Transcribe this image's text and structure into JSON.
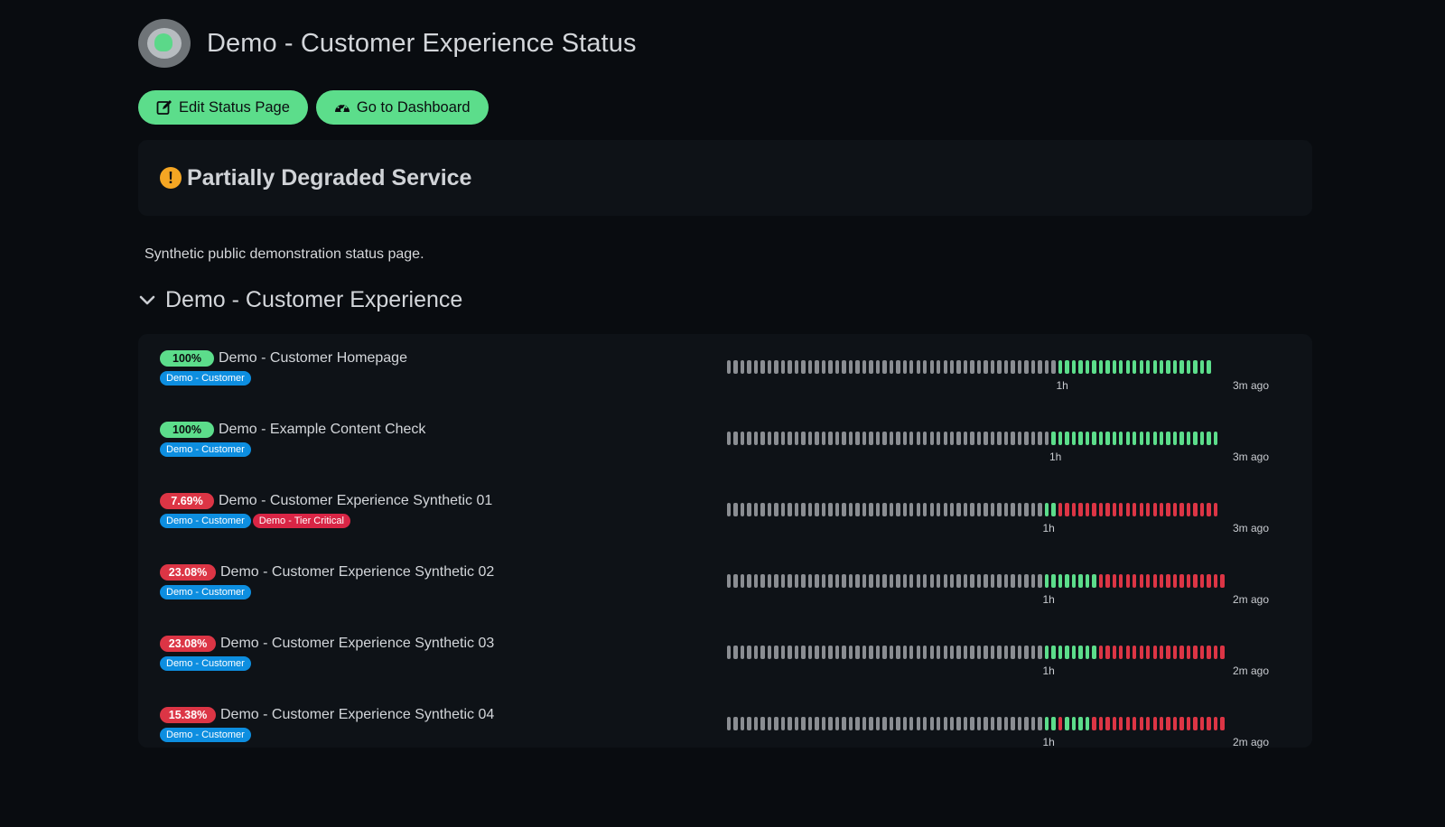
{
  "page": {
    "title": "Demo - Customer Experience Status",
    "edit_label": "Edit Status Page",
    "dashboard_label": "Go to Dashboard",
    "status_text": "Partially Degraded Service",
    "status_icon": "exclamation-circle-icon",
    "description": "Synthetic public demonstration status page."
  },
  "colors": {
    "accent": "#5cdd8b",
    "down": "#dc3545",
    "warning": "#f5a623",
    "tag_customer": "#0d8ee0",
    "tag_tier": "#d92545"
  },
  "group": {
    "title": "Demo - Customer Experience",
    "monitors": [
      {
        "uptime": "100%",
        "state": "up",
        "name": "Demo - Customer Homepage",
        "tags": [
          {
            "label": "Demo - Customer",
            "kind": "customer"
          }
        ],
        "beats": "nnnnnnnnnnnnnnnnnnnnnnnnnnnnnnnnnnnnnnnnnnnnnnnnnggggggggggggggggggggggg",
        "left_label": "1h",
        "right_label": "3m ago"
      },
      {
        "uptime": "100%",
        "state": "up",
        "name": "Demo - Example Content Check",
        "tags": [
          {
            "label": "Demo - Customer",
            "kind": "customer"
          }
        ],
        "beats": "nnnnnnnnnnnnnnnnnnnnnnnnnnnnnnnnnnnnnnnnnnnnnnnnggggggggggggggggggggggggg",
        "left_label": "1h",
        "right_label": "3m ago"
      },
      {
        "uptime": "7.69%",
        "state": "down",
        "name": "Demo - Customer Experience Synthetic 01",
        "tags": [
          {
            "label": "Demo - Customer",
            "kind": "customer"
          },
          {
            "label": "Demo - Tier Critical",
            "kind": "tier"
          }
        ],
        "beats": "nnnnnnnnnnnnnnnnnnnnnnnnnnnnnnnnnnnnnnnnnnnnnnnggrrrrrrrrrrrrrrrrrrrrrrrr",
        "left_label": "1h",
        "right_label": "3m ago"
      },
      {
        "uptime": "23.08%",
        "state": "down",
        "name": "Demo - Customer Experience Synthetic 02",
        "tags": [
          {
            "label": "Demo - Customer",
            "kind": "customer"
          }
        ],
        "beats": "nnnnnnnnnnnnnnnnnnnnnnnnnnnnnnnnnnnnnnnnnnnnnnnggggggggrrrrrrrrrrrrrrrrrrr",
        "left_label": "1h",
        "right_label": "2m ago"
      },
      {
        "uptime": "23.08%",
        "state": "down",
        "name": "Demo - Customer Experience Synthetic 03",
        "tags": [
          {
            "label": "Demo - Customer",
            "kind": "customer"
          }
        ],
        "beats": "nnnnnnnnnnnnnnnnnnnnnnnnnnnnnnnnnnnnnnnnnnnnnnnggggggggrrrrrrrrrrrrrrrrrrr",
        "left_label": "1h",
        "right_label": "2m ago"
      },
      {
        "uptime": "15.38%",
        "state": "down",
        "name": "Demo - Customer Experience Synthetic 04",
        "tags": [
          {
            "label": "Demo - Customer",
            "kind": "customer"
          }
        ],
        "beats": "nnnnnnnnnnnnnnnnnnnnnnnnnnnnnnnnnnnnnnnnnnnnnnnggrggggrrrrrrrrrrrrrrrrrrrr",
        "left_label": "1h",
        "right_label": "2m ago"
      }
    ]
  }
}
